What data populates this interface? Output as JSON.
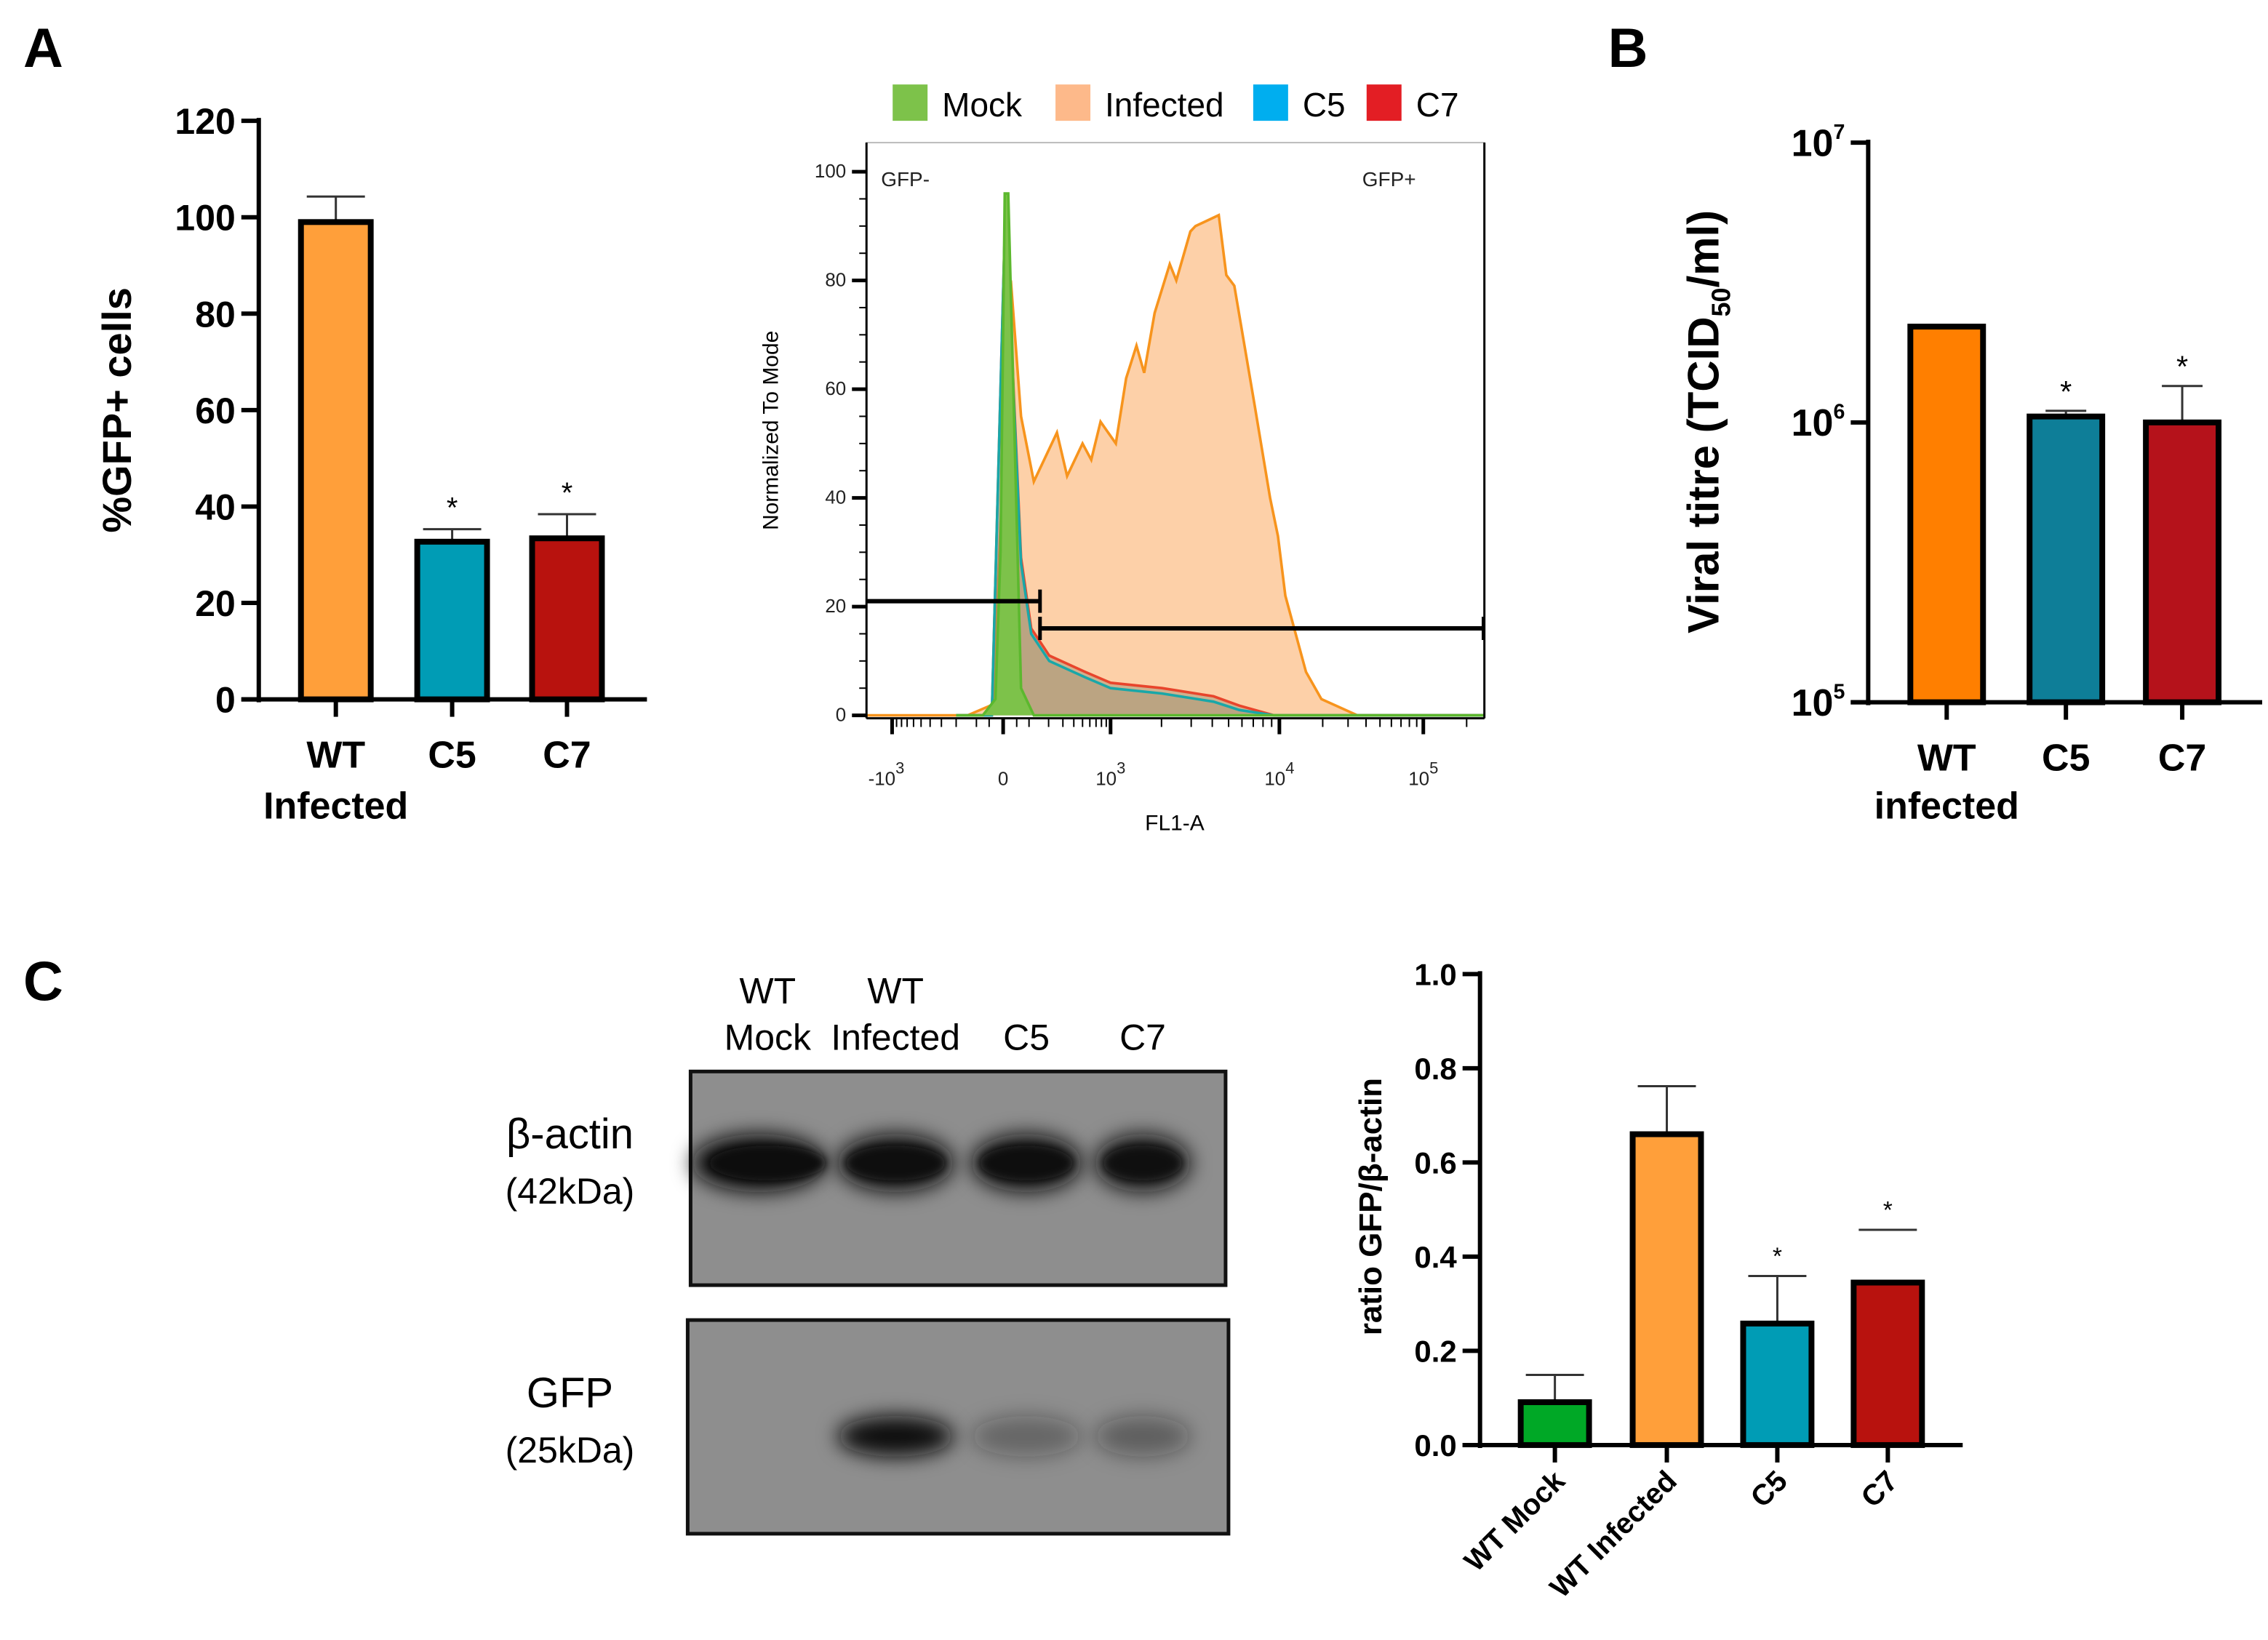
{
  "panels": {
    "a": "A",
    "b": "B",
    "c": "C"
  },
  "chart_data": [
    {
      "name": "gfp-percent-bar-chart",
      "type": "bar",
      "title": "",
      "ylabel": "%GFP+ cells",
      "category_lines": [
        [
          "WT",
          "Infected"
        ],
        [
          "C5"
        ],
        [
          "C7"
        ]
      ],
      "values": [
        99,
        32.7,
        33.4
      ],
      "errors": [
        5.3,
        2.6,
        5.0
      ],
      "significance": [
        "",
        "*",
        "*"
      ],
      "colors": [
        "#ff9f3a",
        "#009cb5",
        "#b8120e"
      ],
      "ylim": [
        0,
        120
      ],
      "yticks": [
        0,
        20,
        40,
        60,
        80,
        100,
        120
      ],
      "ytick_labels": [
        "0",
        "20",
        "40",
        "60",
        "80",
        "100",
        "120"
      ],
      "grid": false
    },
    {
      "name": "flow-cytometry-histogram",
      "type": "area",
      "xlabel": "FL1-A",
      "ylabel": "Normalized To Mode",
      "ylim": [
        0,
        100
      ],
      "yticks": [
        0,
        20,
        40,
        60,
        80,
        100
      ],
      "ytick_labels": [
        "0",
        "20",
        "40",
        "60",
        "80",
        "100"
      ],
      "xticks": [
        -1000,
        0,
        1000,
        10000,
        100000
      ],
      "xtick_labels": [
        {
          "base": "-10",
          "exp": "3"
        },
        {
          "base": "0",
          "exp": ""
        },
        {
          "base": "10",
          "exp": "3"
        },
        {
          "base": "10",
          "exp": "4"
        },
        {
          "base": "10",
          "exp": "5"
        }
      ],
      "xlim": [
        -1900,
        262000
      ],
      "legend": {
        "placement": "top",
        "entries": [
          {
            "label": "Mock",
            "color": "#7dc24a"
          },
          {
            "label": "Infected",
            "color": "#fdb98a"
          },
          {
            "label": "C5",
            "color": "#00aeef"
          },
          {
            "label": "C7",
            "color": "#e31e24"
          }
        ]
      },
      "gates": [
        {
          "label": "GFP-",
          "from": -1900,
          "to": 152,
          "y": 21
        },
        {
          "label": "GFP+",
          "from": 152,
          "to": 262000,
          "y": 16
        }
      ],
      "series": [
        {
          "name": "Infected",
          "stroke": "#f7941d",
          "fill": "#fdd0a8",
          "points": [
            [
              -1900,
              0
            ],
            [
              -140,
              0
            ],
            [
              -36,
              2
            ],
            [
              28,
              80
            ],
            [
              67,
              55
            ],
            [
              122,
              43
            ],
            [
              255,
              52
            ],
            [
              336,
              44
            ],
            [
              500,
              50
            ],
            [
              622,
              47
            ],
            [
              782,
              54
            ],
            [
              1072,
              50
            ],
            [
              1235,
              62
            ],
            [
              1420,
              68
            ],
            [
              1580,
              63
            ],
            [
              1820,
              74
            ],
            [
              2240,
              83
            ],
            [
              2450,
              80
            ],
            [
              2970,
              89
            ],
            [
              3180,
              90
            ],
            [
              4370,
              92
            ],
            [
              4850,
              81
            ],
            [
              5400,
              79
            ],
            [
              7140,
              57
            ],
            [
              8800,
              40
            ],
            [
              9800,
              33
            ],
            [
              11000,
              22
            ],
            [
              15300,
              8
            ],
            [
              19600,
              3
            ],
            [
              34900,
              0
            ],
            [
              262000,
              0
            ]
          ]
        },
        {
          "name": "C7",
          "stroke": "#e8452c",
          "fill": "rgba(150,140,110,0.45)",
          "points": [
            [
              -200,
              0
            ],
            [
              -40,
              0
            ],
            [
              9.3,
              96
            ],
            [
              37.5,
              61
            ],
            [
              67,
              29
            ],
            [
              110,
              16
            ],
            [
              204,
              11
            ],
            [
              533,
              8
            ],
            [
              1000,
              6
            ],
            [
              2020,
              5
            ],
            [
              4070,
              3.5
            ],
            [
              5780,
              1.8
            ],
            [
              9300,
              0
            ],
            [
              262000,
              0
            ]
          ]
        },
        {
          "name": "C5",
          "stroke": "#19a7a8",
          "fill": "rgba(150,140,110,0.35)",
          "points": [
            [
              -200,
              0
            ],
            [
              -40,
              0
            ],
            [
              9.3,
              96
            ],
            [
              37.5,
              60
            ],
            [
              67,
              28
            ],
            [
              110,
              15
            ],
            [
              204,
              10
            ],
            [
              533,
              7
            ],
            [
              1000,
              5
            ],
            [
              2020,
              4
            ],
            [
              4070,
              2.5
            ],
            [
              5780,
              1
            ],
            [
              9300,
              0
            ],
            [
              262000,
              0
            ]
          ]
        },
        {
          "name": "Mock",
          "stroke": "#5cb82e",
          "fill": "#7dc24a",
          "points": [
            [
              -200,
              0
            ],
            [
              -74,
              0
            ],
            [
              -27,
              3
            ],
            [
              -9,
              30
            ],
            [
              5.6,
              96
            ],
            [
              18.6,
              96
            ],
            [
              37.5,
              60
            ],
            [
              67,
              5
            ],
            [
              122,
              0
            ],
            [
              262000,
              0
            ]
          ]
        }
      ]
    },
    {
      "name": "viral-titre-bar-chart",
      "type": "bar",
      "ylabel_parts": [
        "Viral titre (TCID",
        "50",
        "/ml)"
      ],
      "category_lines": [
        [
          "WT",
          "infected"
        ],
        [
          "C5"
        ],
        [
          "C7"
        ]
      ],
      "values": [
        2200000,
        1050000,
        1000000
      ],
      "errors": [
        30000,
        50000,
        350000
      ],
      "significance": [
        "",
        "*",
        "*"
      ],
      "colors": [
        "#ff7f00",
        "#0e7e98",
        "#b5121b"
      ],
      "yscale": "log",
      "ylim": [
        100000,
        10000000
      ],
      "yticks": [
        100000,
        1000000,
        10000000
      ],
      "ytick_labels": [
        {
          "base": "10",
          "exp": "5"
        },
        {
          "base": "10",
          "exp": "6"
        },
        {
          "base": "10",
          "exp": "7"
        }
      ]
    },
    {
      "name": "gfp-actin-ratio-bar-chart",
      "type": "bar",
      "ylabel": "ratio GFP/β-actin",
      "category_lines": [
        [
          "WT Mock"
        ],
        [
          "WT Infected"
        ],
        [
          "C5"
        ],
        [
          "C7"
        ]
      ],
      "values": [
        0.091,
        0.66,
        0.258,
        0.345
      ],
      "errors": [
        0.058,
        0.102,
        0.101,
        0.112
      ],
      "detached_error": [
        false,
        false,
        false,
        true
      ],
      "significance": [
        "",
        "",
        "*",
        "*"
      ],
      "colors": [
        "#00a826",
        "#ff9f3a",
        "#009cb5",
        "#b8120e"
      ],
      "ylim": [
        0,
        1.0
      ],
      "yticks": [
        0,
        0.2,
        0.4,
        0.6,
        0.8,
        1.0
      ],
      "ytick_labels": [
        "0.0",
        "0.2",
        "0.4",
        "0.6",
        "0.8",
        "1.0"
      ]
    }
  ],
  "blot": {
    "lanes": [
      [
        "WT",
        "Mock"
      ],
      [
        "WT",
        "Infected"
      ],
      [
        "C5"
      ],
      [
        "C7"
      ]
    ],
    "rows": [
      {
        "label": "β-actin",
        "size": "(42kDa)",
        "intensity": [
          1,
          0.95,
          0.95,
          0.9
        ]
      },
      {
        "label": "GFP",
        "size": "(25kDa)",
        "intensity": [
          0,
          1,
          0.35,
          0.4
        ]
      }
    ]
  }
}
